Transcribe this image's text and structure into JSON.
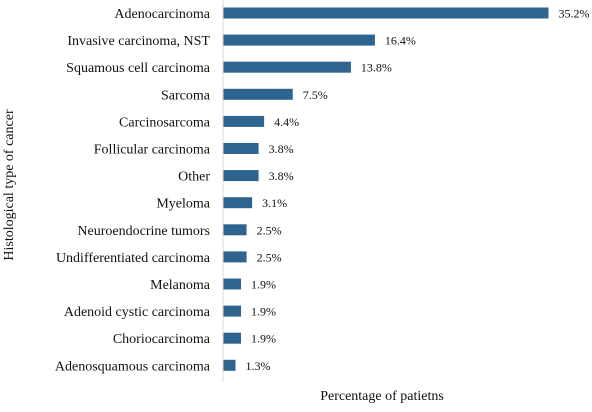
{
  "chart_data": {
    "type": "bar",
    "orientation": "horizontal",
    "categories": [
      "Adenocarcinoma",
      "Invasive carcinoma, NST",
      "Squamous cell carcinoma",
      "Sarcoma",
      "Carcinosarcoma",
      "Follicular carcinoma",
      "Other",
      "Myeloma",
      "Neuroendocrine tumors",
      "Undifferentiated carcinoma",
      "Melanoma",
      "Adenoid cystic carcinoma",
      "Choriocarcinoma",
      "Adenosquamous carcinoma"
    ],
    "values": [
      35.2,
      16.4,
      13.8,
      7.5,
      4.4,
      3.8,
      3.8,
      3.1,
      2.5,
      2.5,
      1.9,
      1.9,
      1.9,
      1.3
    ],
    "value_labels": [
      "35.2%",
      "16.4%",
      "13.8%",
      "7.5%",
      "4.4%",
      "3.8%",
      "3.8%",
      "3.1%",
      "2.5%",
      "2.5%",
      "1.9%",
      "1.9%",
      "1.9%",
      "1.3%"
    ],
    "title": "",
    "xlabel": "Percentage of patietns",
    "ylabel": "Histological type of cancer",
    "xlim": [
      0,
      35.2
    ],
    "grid": false,
    "bar_color": "#2e6590",
    "axis_color": "#d9d9d9"
  }
}
